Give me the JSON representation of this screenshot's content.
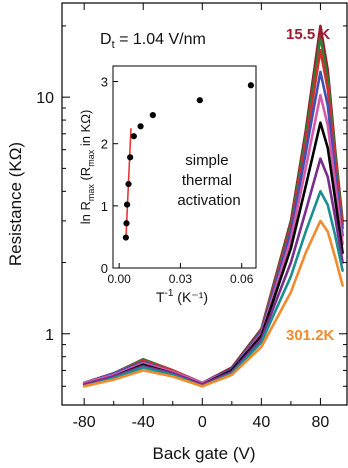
{
  "chart_data": [
    {
      "type": "line",
      "title": "",
      "xlabel": "Back gate (V)",
      "ylabel": "Resistance (KΩ)",
      "y_scale": "log",
      "xlim": [
        -95,
        98
      ],
      "ylim": [
        0.5,
        25
      ],
      "grid": false,
      "annotation": "D_t = 1.04 V/nm",
      "x_ticks": [
        -80,
        -40,
        0,
        40,
        80
      ],
      "x_tick_labels": [
        "-80",
        "-40",
        "0",
        "40",
        "80"
      ],
      "y_ticks": [
        1,
        10
      ],
      "y_tick_labels": [
        "1",
        "10"
      ],
      "x": [
        -80,
        -60,
        -40,
        -20,
        0,
        20,
        40,
        60,
        70,
        80,
        85,
        90,
        95
      ],
      "series": [
        {
          "name": "15.5 K",
          "color": "#9b1b30",
          "values": [
            0.62,
            0.68,
            0.78,
            0.7,
            0.62,
            0.72,
            1.05,
            3.0,
            7.2,
            20.0,
            13.0,
            6.0,
            3.0
          ]
        },
        {
          "color": "#2e7d32",
          "values": [
            0.62,
            0.68,
            0.78,
            0.7,
            0.62,
            0.71,
            1.04,
            2.9,
            6.8,
            18.0,
            12.0,
            5.8,
            2.9
          ]
        },
        {
          "color": "#d32f2f",
          "values": [
            0.62,
            0.68,
            0.77,
            0.7,
            0.62,
            0.71,
            1.03,
            2.8,
            6.3,
            15.8,
            10.8,
            5.4,
            2.8
          ]
        },
        {
          "color": "#3f51b5",
          "values": [
            0.62,
            0.68,
            0.76,
            0.69,
            0.62,
            0.71,
            1.02,
            2.7,
            5.8,
            12.8,
            9.2,
            4.8,
            2.6
          ]
        },
        {
          "color": "#d65aa8",
          "values": [
            0.62,
            0.67,
            0.75,
            0.69,
            0.62,
            0.7,
            1.0,
            2.5,
            5.0,
            10.2,
            7.6,
            4.3,
            2.4
          ]
        },
        {
          "color": "#000000",
          "values": [
            0.61,
            0.66,
            0.74,
            0.68,
            0.61,
            0.7,
            0.98,
            2.3,
            4.2,
            7.8,
            6.1,
            3.7,
            2.2
          ]
        },
        {
          "color": "#7b2d8e",
          "values": [
            0.61,
            0.66,
            0.73,
            0.68,
            0.61,
            0.69,
            0.95,
            2.0,
            3.3,
            5.5,
            4.6,
            3.1,
            2.0
          ]
        },
        {
          "color": "#1a8f8f",
          "values": [
            0.6,
            0.65,
            0.72,
            0.67,
            0.6,
            0.68,
            0.92,
            1.75,
            2.7,
            4.0,
            3.5,
            2.6,
            1.85
          ]
        },
        {
          "name": "301.2K",
          "color": "#f28a2e",
          "values": [
            0.6,
            0.64,
            0.7,
            0.66,
            0.6,
            0.67,
            0.88,
            1.5,
            2.2,
            3.0,
            2.7,
            2.1,
            1.6
          ]
        }
      ]
    },
    {
      "type": "scatter",
      "title": "",
      "xlabel": "T⁻¹ (K⁻¹)",
      "ylabel": "ln R_max (R_max in KΩ)",
      "xlim": [
        -0.003,
        0.067
      ],
      "ylim": [
        0,
        3.25
      ],
      "x_ticks": [
        0,
        0.03,
        0.06
      ],
      "x_tick_labels": [
        "0.00",
        "0.03",
        "0.06"
      ],
      "y_ticks": [
        0,
        1,
        2,
        3
      ],
      "y_tick_labels": [
        "0",
        "1",
        "2",
        "3"
      ],
      "annotation": [
        "simple",
        "thermal",
        "activation"
      ],
      "points": {
        "x": [
          0.0033,
          0.0036,
          0.0039,
          0.0046,
          0.0054,
          0.0072,
          0.0105,
          0.0165,
          0.0395,
          0.0645
        ],
        "y": [
          0.49,
          0.72,
          1.02,
          1.35,
          1.78,
          2.12,
          2.28,
          2.46,
          2.7,
          2.94
        ]
      },
      "fit_line": {
        "color": "#e53935",
        "x": [
          0.0033,
          0.0058
        ],
        "y": [
          0.45,
          2.25
        ]
      }
    }
  ]
}
